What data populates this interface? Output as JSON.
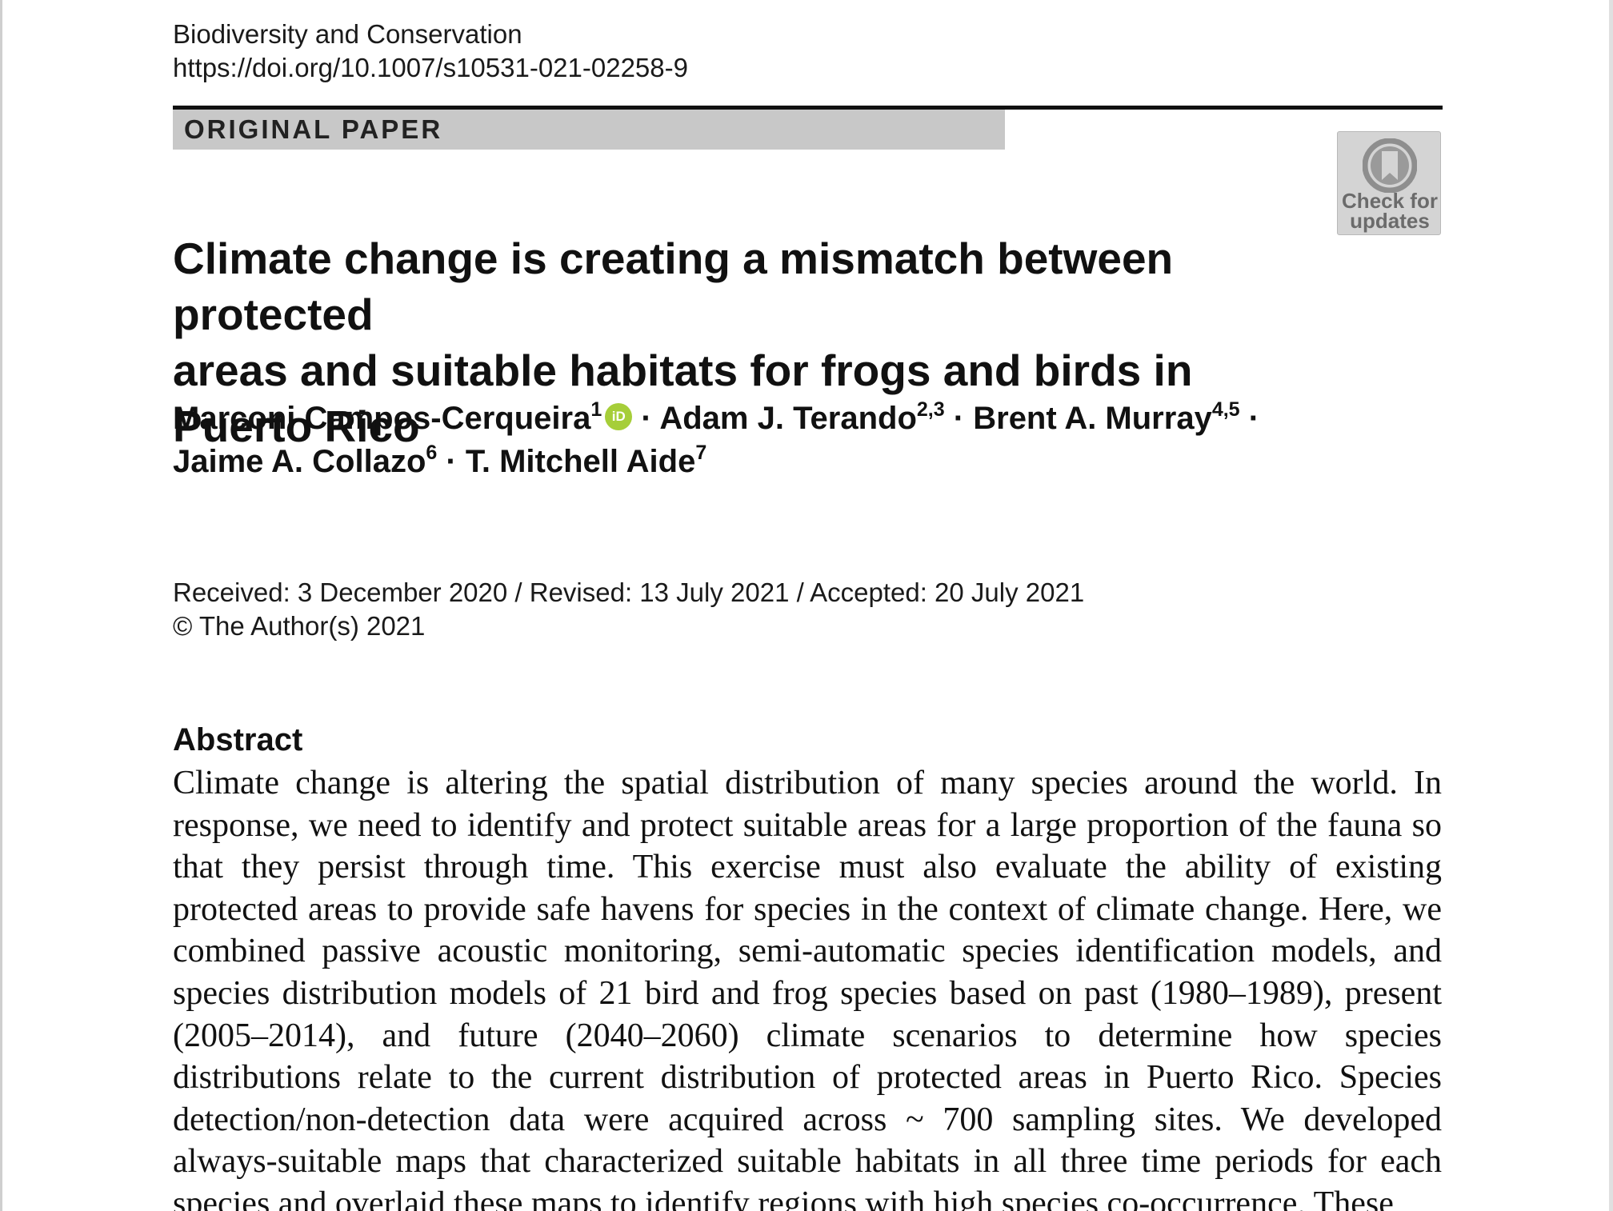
{
  "header": {
    "journal": "Biodiversity and Conservation",
    "doi": "https://doi.org/10.1007/s10531-021-02258-9"
  },
  "article_type": "ORIGINAL PAPER",
  "badge": {
    "icon": "bookmark-icon",
    "line1": "Check for",
    "line2": "updates"
  },
  "title_line1": "Climate change is creating a mismatch between protected",
  "title_line2": "areas and suitable habitats for frogs and birds in Puerto Rico",
  "authors": [
    {
      "name": "Marconi Campos-Cerqueira",
      "sup": "1"
    },
    {
      "name": "Adam J. Terando",
      "sup": "2,3"
    },
    {
      "name": "Brent A. Murray",
      "sup": "4,5"
    },
    {
      "name": "Jaime A. Collazo",
      "sup": "6"
    },
    {
      "name": "T. Mitchell Aide",
      "sup": "7"
    }
  ],
  "orcid_label": "iD",
  "separator": "·",
  "dates": "Received: 3 December 2020 / Revised: 13 July 2021 / Accepted: 20 July 2021",
  "copyright": "© The Author(s) 2021",
  "abstract": {
    "heading": "Abstract",
    "text": "Climate change is altering the spatial distribution of many species around the world. In response, we need to identify and protect suitable areas for a large proportion of the fauna so that they persist through time. This exercise must also evaluate the ability of existing protected areas to provide safe havens for species in the context of climate change. Here, we combined passive acoustic monitoring, semi-automatic species identification models, and species distribution models of 21 bird and frog species based on past (1980–1989), present (2005–2014), and future (2040–2060) climate scenarios to determine how species distributions relate to the current distribution of protected areas in Puerto Rico. Species detection/non-detection data were acquired across ~ 700 sampling sites. We developed always-suitable maps that characterized suitable habitats in all three time periods for each species and overlaid these maps to identify regions with high species co-occurrence. These"
  }
}
